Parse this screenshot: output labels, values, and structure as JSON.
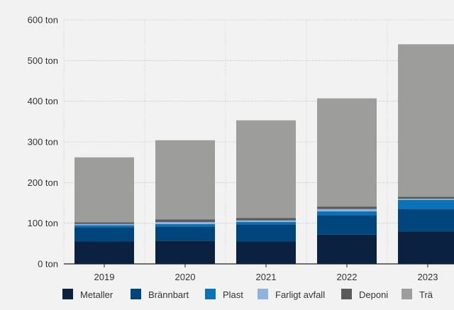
{
  "chart_data": {
    "type": "bar",
    "stacked": true,
    "categories": [
      "2019",
      "2020",
      "2021",
      "2022",
      "2023"
    ],
    "ylim": [
      0,
      600
    ],
    "yticks": [
      0,
      100,
      200,
      300,
      400,
      500,
      600
    ],
    "y_tick_labels": [
      "0 ton",
      "100 ton",
      "200 ton",
      "300 ton",
      "400 ton",
      "500 ton",
      "600 ton"
    ],
    "grid": true,
    "legend_position": "bottom",
    "series": [
      {
        "name": "Metaller",
        "color": "#0a2240",
        "values": [
          55,
          57,
          55,
          72,
          80
        ]
      },
      {
        "name": "Brännbart",
        "color": "#00457c",
        "values": [
          35,
          35,
          42,
          48,
          55
        ]
      },
      {
        "name": "Plast",
        "color": "#0a72b8",
        "values": [
          5,
          6,
          6,
          9,
          22
        ]
      },
      {
        "name": "Farligt avfall",
        "color": "#8fb3de",
        "values": [
          3,
          5,
          4,
          6,
          3
        ]
      },
      {
        "name": "Deponi",
        "color": "#5a5a5a",
        "values": [
          4,
          6,
          6,
          6,
          5
        ]
      },
      {
        "name": "Trä",
        "color": "#9d9d9b",
        "values": [
          160,
          195,
          240,
          266,
          375
        ]
      }
    ]
  }
}
